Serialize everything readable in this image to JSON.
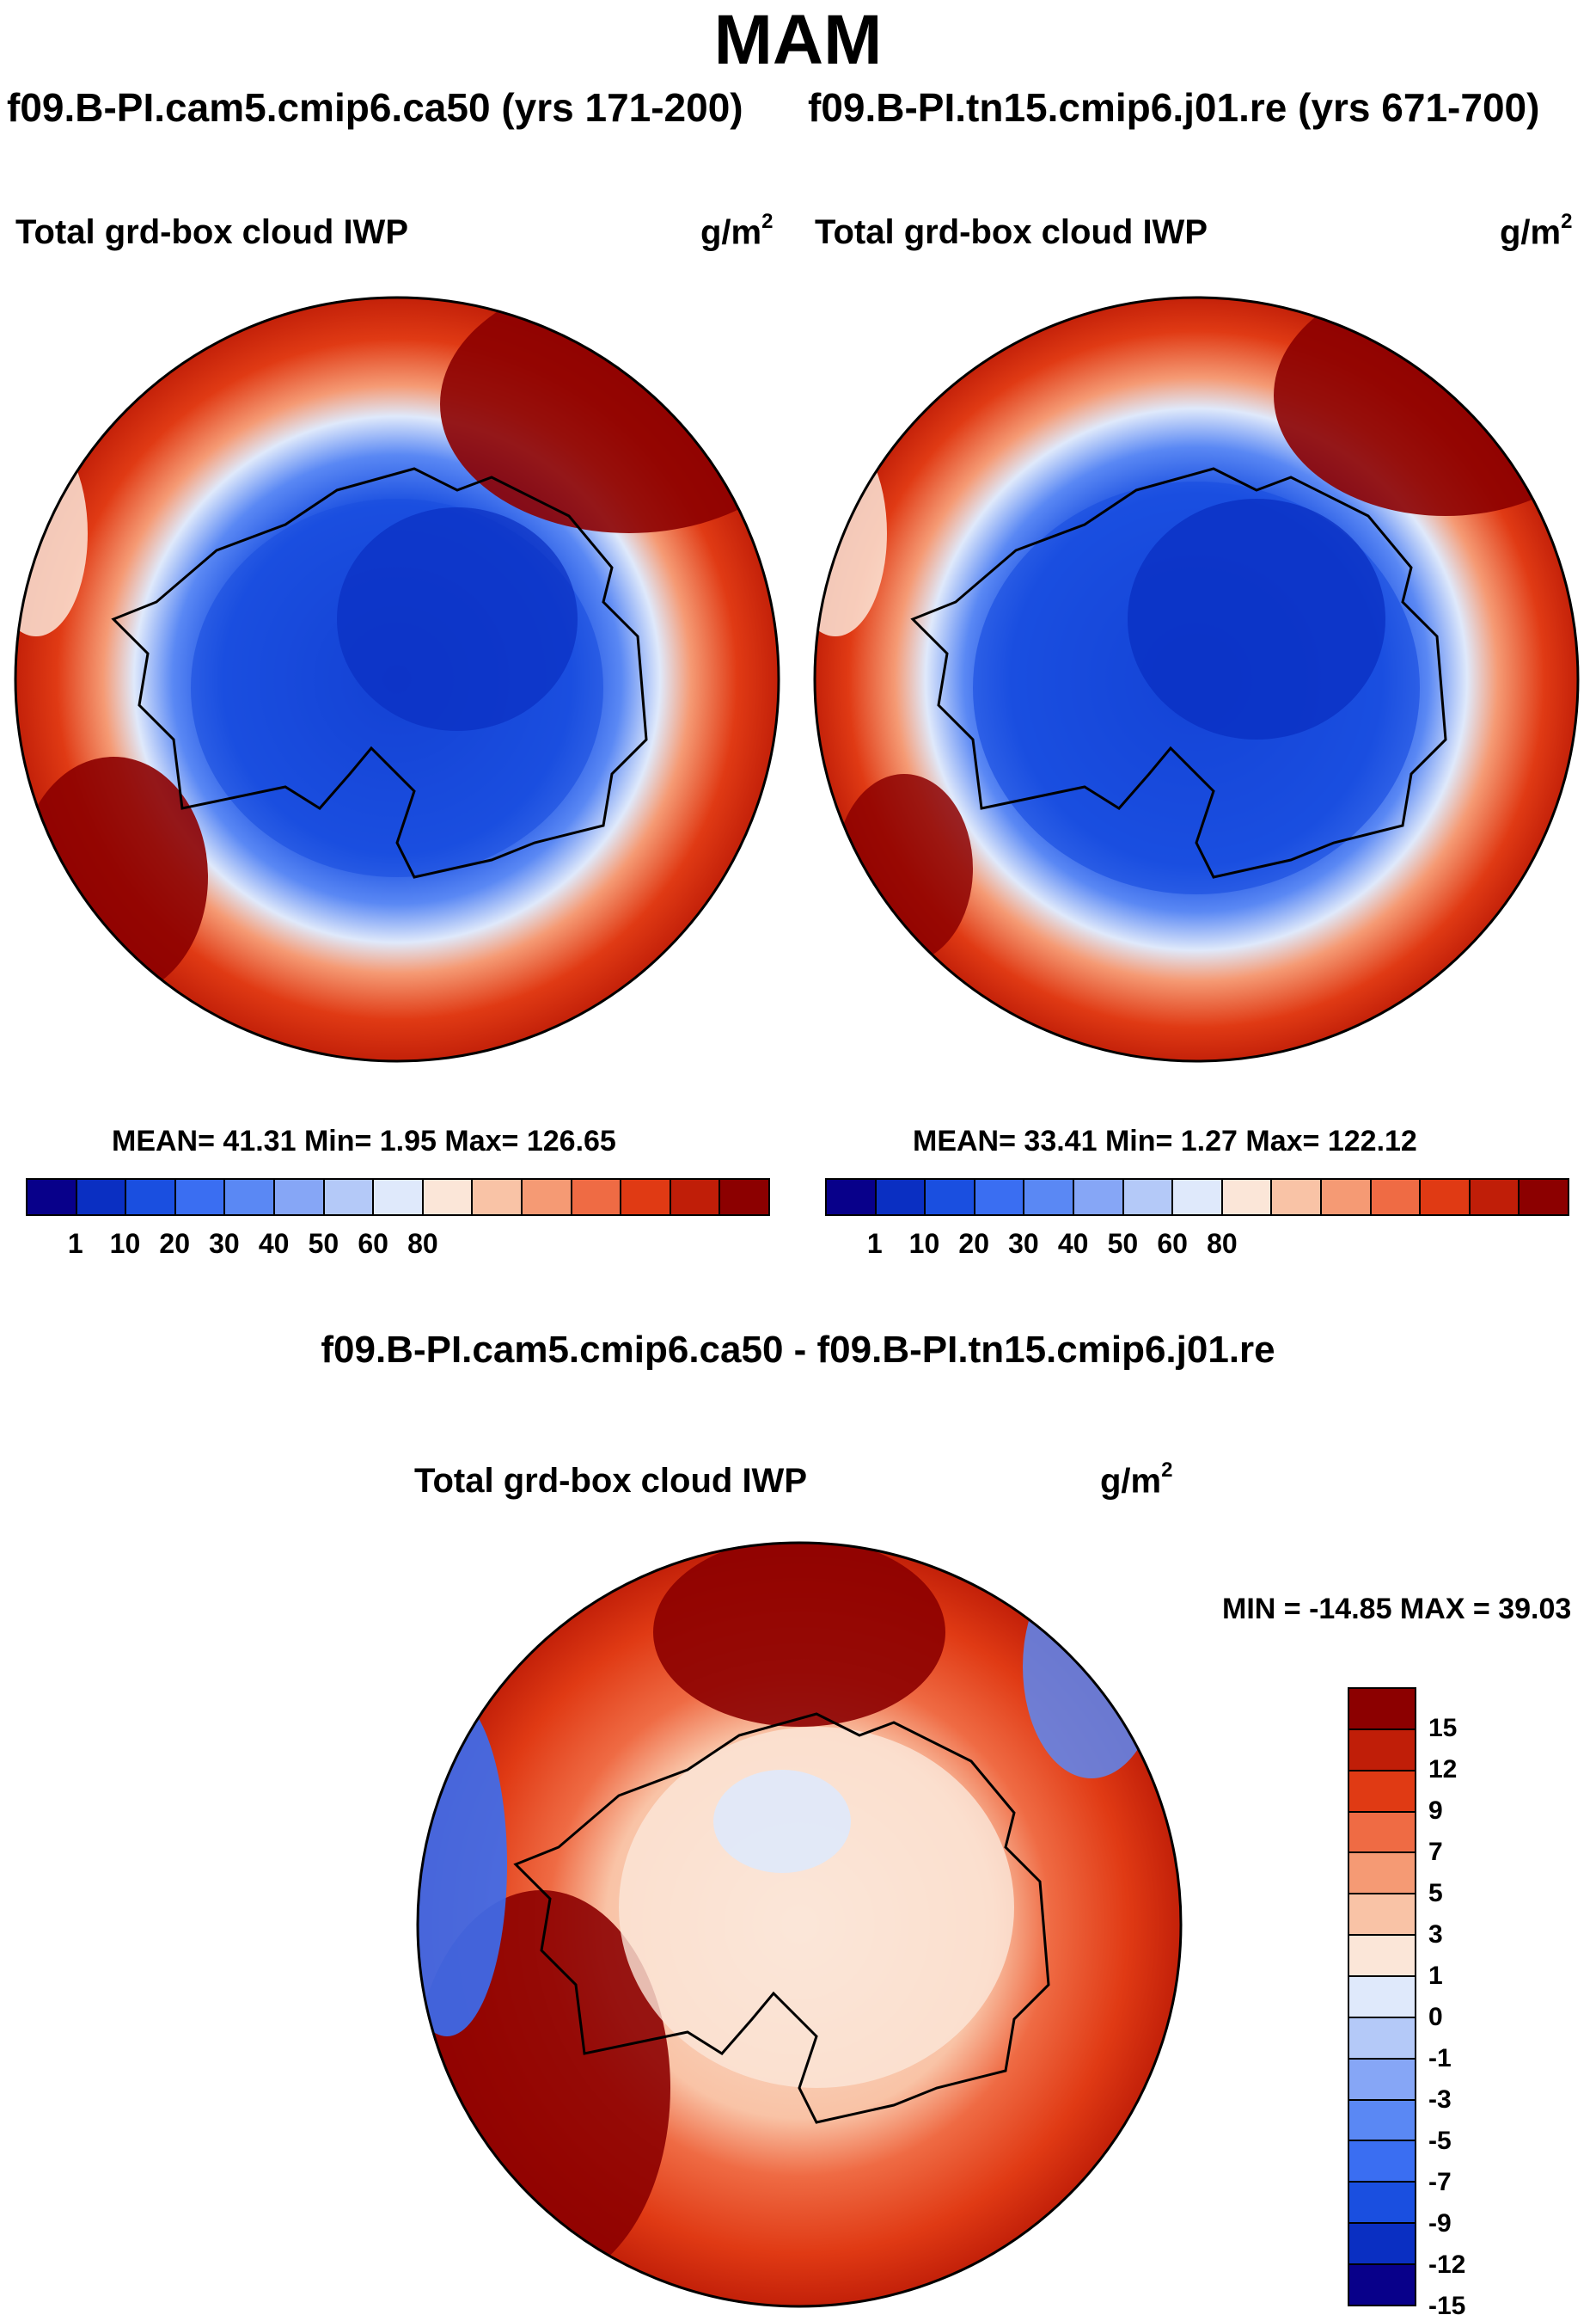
{
  "title": "MAM",
  "case_titles": {
    "left": "f09.B-PI.cam5.cmip6.ca50 (yrs 171-200)",
    "right": "f09.B-PI.tn15.cmip6.j01.re (yrs 671-700)"
  },
  "diff_title": "f09.B-PI.cam5.cmip6.ca50 - f09.B-PI.tn15.cmip6.j01.re",
  "colors": {
    "abs": [
      "#08008a",
      "#0a2fc2",
      "#1a4fe0",
      "#3a6ef2",
      "#5a88f4",
      "#86a6f6",
      "#b4c9f8",
      "#dfe9fb",
      "#fbe6d8",
      "#f9c3a6",
      "#f59a74",
      "#ef6b44",
      "#e03a14",
      "#c01e08",
      "#8c0000"
    ],
    "diff": [
      "#8c0000",
      "#c01e08",
      "#e03a14",
      "#ef6b44",
      "#f59a74",
      "#f9c3a6",
      "#fbe6d8",
      "#dfe9fb",
      "#b4c9f8",
      "#86a6f6",
      "#5a88f4",
      "#3a6ef2",
      "#1a4fe0",
      "#0a2fc2",
      "#08008a"
    ]
  },
  "chart_data": [
    {
      "type": "heatmap",
      "title": "Total grd-box cloud IWP",
      "units": "g/m",
      "units_exp": "2",
      "stats": "MEAN=  41.31  Min=   1.95  Max= 126.65",
      "mean": 41.31,
      "min": 1.95,
      "max": 126.65,
      "colorbar_ticks": [
        "1",
        "10",
        "20",
        "30",
        "40",
        "50",
        "60",
        "80"
      ]
    },
    {
      "type": "heatmap",
      "title": "Total grd-box cloud IWP",
      "units": "g/m",
      "units_exp": "2",
      "stats": "MEAN=  33.41  Min=   1.27  Max= 122.12",
      "mean": 33.41,
      "min": 1.27,
      "max": 122.12,
      "colorbar_ticks": [
        "1",
        "10",
        "20",
        "30",
        "40",
        "50",
        "60",
        "80"
      ]
    },
    {
      "type": "heatmap",
      "title": "Total grd-box cloud IWP",
      "units": "g/m",
      "units_exp": "2",
      "stats": "MIN = -14.85 MAX =  39.03",
      "min": -14.85,
      "max": 39.03,
      "colorbar_ticks": [
        "15",
        "12",
        "9",
        "7",
        "5",
        "3",
        "1",
        "0",
        "-1",
        "-3",
        "-5",
        "-7",
        "-9",
        "-12",
        "-15"
      ]
    }
  ]
}
